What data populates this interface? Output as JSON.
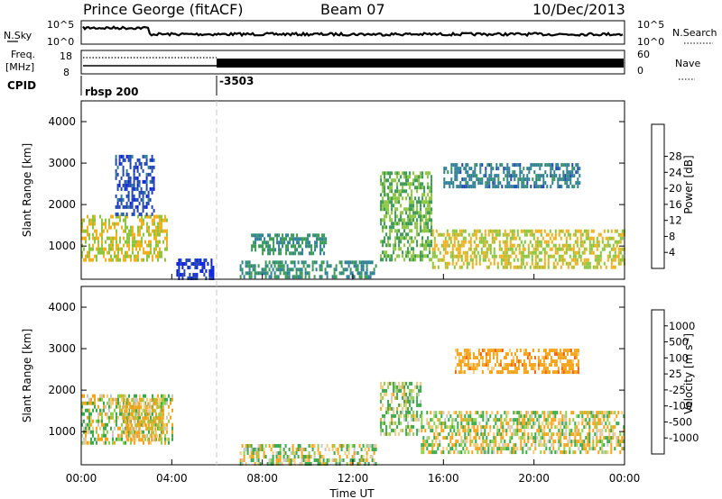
{
  "header": {
    "station": "Prince George (fitACF)",
    "beam": "Beam 07",
    "date": "10/Dec/2013"
  },
  "top_panels": {
    "nsky_label": "N.Sky",
    "nsky_ticks": [
      "10^5",
      "10^0"
    ],
    "nsearch_label": "N.Search",
    "nsearch_ticks": [
      "10^5",
      "10^0"
    ],
    "freq_label_1": "Freq.",
    "freq_label_2": "[MHz]",
    "freq_ticks": [
      "18",
      "8"
    ],
    "nave_label": "Nave",
    "nave_ticks": [
      "60",
      "0"
    ],
    "cpid_label": "CPID",
    "cpid_entries": [
      {
        "name": "rbsp 200",
        "start_hour": 0
      },
      {
        "name": "-3503",
        "start_hour": 6
      }
    ]
  },
  "chart_data": [
    {
      "type": "heatmap",
      "name": "power",
      "ylabel": "Slant Range [km]",
      "y_ticks": [
        "1000",
        "2000",
        "3000",
        "4000"
      ],
      "ylim": [
        200,
        4500
      ],
      "xlim": [
        0,
        24
      ],
      "colorbar_label": "Power [dB]",
      "colorbar_ticks": [
        "4",
        "8",
        "12",
        "16",
        "20",
        "24",
        "28"
      ],
      "colorbar_colors": [
        "#0a1ee6",
        "#2246b4",
        "#2f7f95",
        "#3a9a55",
        "#8cc63c",
        "#f2b01c",
        "#f08a16",
        "#ef5a12",
        "#e21a10"
      ],
      "regions": [
        {
          "x": [
            0,
            3.8
          ],
          "y": [
            650,
            1750
          ],
          "level": 20
        },
        {
          "x": [
            1.5,
            3.2
          ],
          "y": [
            1800,
            3200
          ],
          "level": 6
        },
        {
          "x": [
            4.2,
            5.8
          ],
          "y": [
            250,
            700
          ],
          "level": 4
        },
        {
          "x": [
            7,
            13
          ],
          "y": [
            250,
            650
          ],
          "level": 12
        },
        {
          "x": [
            7.5,
            10.8
          ],
          "y": [
            850,
            1300
          ],
          "level": 12
        },
        {
          "x": [
            13.2,
            15.5
          ],
          "y": [
            700,
            2800
          ],
          "level": 16
        },
        {
          "x": [
            15.5,
            24
          ],
          "y": [
            500,
            1400
          ],
          "level": 20
        },
        {
          "x": [
            16,
            22
          ],
          "y": [
            2400,
            3000
          ],
          "level": 10
        }
      ]
    },
    {
      "type": "heatmap",
      "name": "velocity",
      "ylabel": "Slant Range [km]",
      "y_ticks": [
        "1000",
        "2000",
        "3000",
        "4000"
      ],
      "ylim": [
        200,
        4500
      ],
      "xlim": [
        0,
        24
      ],
      "colorbar_label": "Velocity [m s",
      "colorbar_label_sup": "-1",
      "colorbar_ticks": [
        "-1000",
        "-500",
        "-100",
        "-25",
        "25",
        "100",
        "500",
        "1000"
      ],
      "colorbar_colors": [
        "#e0180f",
        "#ef6412",
        "#f4a418",
        "#f2cc7a",
        "#c8c8c8",
        "#8fd14a",
        "#3aaa4a",
        "#2b8a6f",
        "#2a4ad0"
      ],
      "regions": [
        {
          "x": [
            0,
            4
          ],
          "y": [
            700,
            1900
          ],
          "level": 25
        },
        {
          "x": [
            1.8,
            3.6
          ],
          "y": [
            800,
            1800
          ],
          "level": -150
        },
        {
          "x": [
            7,
            13
          ],
          "y": [
            250,
            700
          ],
          "level": 25
        },
        {
          "x": [
            13.2,
            15
          ],
          "y": [
            900,
            2200
          ],
          "level": 100
        },
        {
          "x": [
            15,
            24
          ],
          "y": [
            500,
            1500
          ],
          "level": 0
        },
        {
          "x": [
            16.5,
            22
          ],
          "y": [
            2400,
            3000
          ],
          "level": -300
        }
      ]
    }
  ],
  "x_axis": {
    "ticks": [
      "00:00",
      "04:00",
      "08:00",
      "12:00",
      "16:00",
      "20:00",
      "00:00"
    ],
    "label": "Time UT"
  }
}
